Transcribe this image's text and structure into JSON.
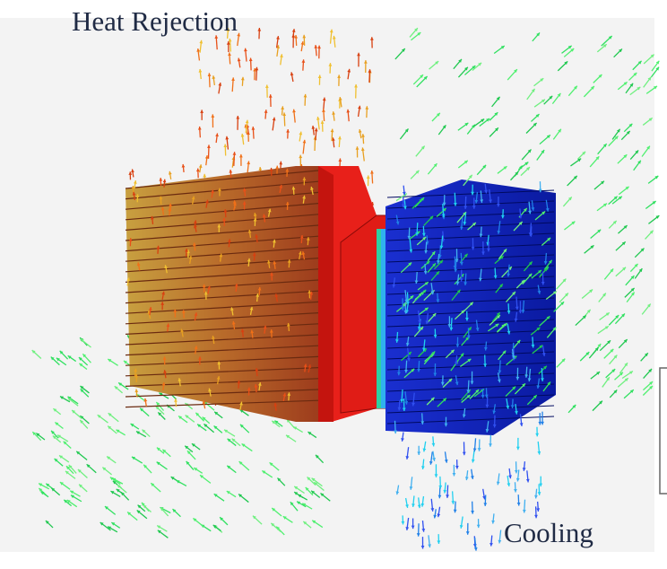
{
  "labels": {
    "top": "Heat Rejection",
    "bottom": "Cooling"
  }
}
